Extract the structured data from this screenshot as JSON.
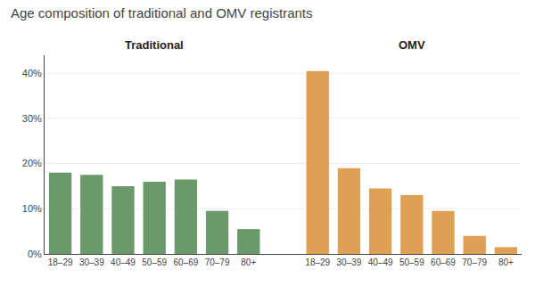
{
  "chart_data": {
    "type": "bar",
    "title": "Age composition of traditional and OMV registrants",
    "categories": [
      "18–29",
      "30–39",
      "40–49",
      "50–59",
      "60–69",
      "70–79",
      "80+",
      "18–29",
      "30–39",
      "40–49",
      "50–59",
      "60–69",
      "70–79",
      "80+"
    ],
    "values": [
      18.0,
      17.5,
      15.0,
      16.0,
      16.5,
      9.5,
      5.5,
      40.5,
      19.0,
      14.5,
      13.0,
      9.5,
      4.0,
      1.5
    ],
    "colors": [
      "#6a9a6a",
      "#6a9a6a",
      "#6a9a6a",
      "#6a9a6a",
      "#6a9a6a",
      "#6a9a6a",
      "#6a9a6a",
      "#dea055",
      "#dea055",
      "#dea055",
      "#dea055",
      "#dea055",
      "#dea055",
      "#dea055"
    ],
    "annotations": [
      "Traditional",
      "OMV"
    ],
    "ylim": [
      0,
      44
    ],
    "yticks": [
      {
        "value": 0,
        "label": "0%"
      },
      {
        "value": 10,
        "label": "10%"
      },
      {
        "value": 20,
        "label": "20%"
      },
      {
        "value": 30,
        "label": "30%"
      },
      {
        "value": 40,
        "label": "40%"
      }
    ],
    "grid": true
  }
}
